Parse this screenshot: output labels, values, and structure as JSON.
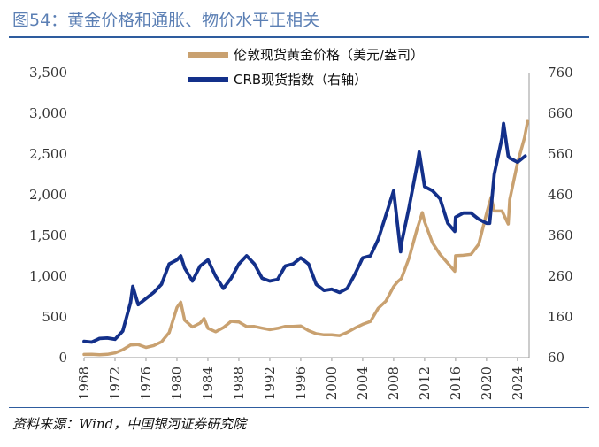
{
  "title": "图54：黄金价格和通胀、物价水平正相关",
  "source": "资料来源：Wind，中国银河证券研究院",
  "chart_data": {
    "type": "line",
    "title": "图54：黄金价格和通胀、物价水平正相关",
    "legend_position": "top-center",
    "grid": false,
    "x_ticks": [
      "1968",
      "1972",
      "1976",
      "1980",
      "1984",
      "1988",
      "1992",
      "1996",
      "2000",
      "2004",
      "2008",
      "2012",
      "2016",
      "2020",
      "2024"
    ],
    "xlim": [
      1968,
      2025.5
    ],
    "y_left": {
      "ylim": [
        0,
        3500
      ],
      "ticks": [
        "0",
        "500",
        "1,000",
        "1,500",
        "2,000",
        "2,500",
        "3,000",
        "3,500"
      ]
    },
    "y_right": {
      "ylim": [
        60,
        760
      ],
      "ticks": [
        "60",
        "160",
        "260",
        "360",
        "460",
        "560",
        "660",
        "760"
      ]
    },
    "series": [
      {
        "name": "伦敦现货黄金价格（美元/盎司）",
        "axis": "left",
        "color": "#c9a170",
        "points": [
          [
            1968,
            39
          ],
          [
            1969,
            41
          ],
          [
            1970,
            35
          ],
          [
            1971,
            40
          ],
          [
            1972,
            58
          ],
          [
            1973,
            97
          ],
          [
            1974,
            154
          ],
          [
            1975,
            160
          ],
          [
            1976,
            125
          ],
          [
            1977,
            148
          ],
          [
            1978,
            193
          ],
          [
            1979,
            306
          ],
          [
            1980,
            615
          ],
          [
            1980.5,
            680
          ],
          [
            1981,
            460
          ],
          [
            1982,
            376
          ],
          [
            1983,
            424
          ],
          [
            1983.5,
            480
          ],
          [
            1984,
            360
          ],
          [
            1985,
            317
          ],
          [
            1986,
            368
          ],
          [
            1987,
            446
          ],
          [
            1988,
            437
          ],
          [
            1989,
            381
          ],
          [
            1990,
            383
          ],
          [
            1991,
            362
          ],
          [
            1992,
            344
          ],
          [
            1993,
            360
          ],
          [
            1994,
            384
          ],
          [
            1995,
            384
          ],
          [
            1996,
            388
          ],
          [
            1997,
            331
          ],
          [
            1998,
            294
          ],
          [
            1999,
            279
          ],
          [
            2000,
            279
          ],
          [
            2001,
            271
          ],
          [
            2002,
            310
          ],
          [
            2003,
            363
          ],
          [
            2004,
            409
          ],
          [
            2005,
            445
          ],
          [
            2006,
            604
          ],
          [
            2007,
            695
          ],
          [
            2008,
            872
          ],
          [
            2008.5,
            930
          ],
          [
            2009,
            972
          ],
          [
            2010,
            1225
          ],
          [
            2011,
            1572
          ],
          [
            2011.7,
            1780
          ],
          [
            2012,
            1669
          ],
          [
            2013,
            1411
          ],
          [
            2014,
            1266
          ],
          [
            2015,
            1160
          ],
          [
            2015.9,
            1060
          ],
          [
            2016,
            1251
          ],
          [
            2017,
            1257
          ],
          [
            2018,
            1268
          ],
          [
            2019,
            1393
          ],
          [
            2020,
            1770
          ],
          [
            2020.6,
            1970
          ],
          [
            2021,
            1800
          ],
          [
            2022,
            1800
          ],
          [
            2022.8,
            1640
          ],
          [
            2023,
            1940
          ],
          [
            2024,
            2390
          ],
          [
            2024.9,
            2700
          ],
          [
            2025.3,
            2900
          ]
        ]
      },
      {
        "name": "CRB现货指数（右轴）",
        "axis": "right",
        "color": "#13308a",
        "points": [
          [
            1968,
            100
          ],
          [
            1969,
            98
          ],
          [
            1970,
            107
          ],
          [
            1971,
            108
          ],
          [
            1972,
            105
          ],
          [
            1973,
            125
          ],
          [
            1974,
            195
          ],
          [
            1974.3,
            235
          ],
          [
            1975,
            190
          ],
          [
            1976,
            205
          ],
          [
            1977,
            220
          ],
          [
            1978,
            240
          ],
          [
            1979,
            290
          ],
          [
            1980,
            300
          ],
          [
            1980.5,
            310
          ],
          [
            1981,
            280
          ],
          [
            1982,
            248
          ],
          [
            1983,
            285
          ],
          [
            1984,
            300
          ],
          [
            1985,
            260
          ],
          [
            1986,
            230
          ],
          [
            1987,
            255
          ],
          [
            1988,
            290
          ],
          [
            1989,
            310
          ],
          [
            1990,
            290
          ],
          [
            1991,
            255
          ],
          [
            1992,
            248
          ],
          [
            1993,
            252
          ],
          [
            1994,
            285
          ],
          [
            1995,
            290
          ],
          [
            1996,
            305
          ],
          [
            1997,
            290
          ],
          [
            1998,
            240
          ],
          [
            1999,
            225
          ],
          [
            2000,
            228
          ],
          [
            2001,
            220
          ],
          [
            2002,
            230
          ],
          [
            2003,
            265
          ],
          [
            2004,
            305
          ],
          [
            2005,
            310
          ],
          [
            2006,
            350
          ],
          [
            2007,
            410
          ],
          [
            2008,
            470
          ],
          [
            2008.9,
            320
          ],
          [
            2009,
            340
          ],
          [
            2010,
            430
          ],
          [
            2011,
            530
          ],
          [
            2011.3,
            565
          ],
          [
            2012,
            480
          ],
          [
            2013,
            470
          ],
          [
            2014,
            450
          ],
          [
            2015,
            390
          ],
          [
            2015.9,
            370
          ],
          [
            2016,
            405
          ],
          [
            2017,
            415
          ],
          [
            2018,
            415
          ],
          [
            2019,
            400
          ],
          [
            2020,
            390
          ],
          [
            2020.4,
            390
          ],
          [
            2021,
            510
          ],
          [
            2022,
            600
          ],
          [
            2022.2,
            635
          ],
          [
            2022.8,
            555
          ],
          [
            2023,
            550
          ],
          [
            2024,
            540
          ],
          [
            2025,
            555
          ]
        ]
      }
    ]
  }
}
